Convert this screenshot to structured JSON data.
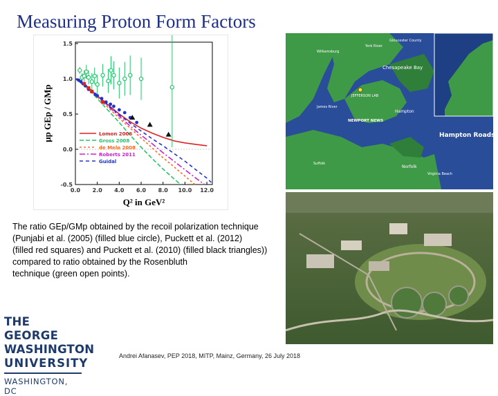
{
  "slide": {
    "title": "Measuring Proton Form Factors",
    "caption_lines": [
      "The ratio GEp/GMp obtained by the recoil polarization technique",
      " (Punjabi et al. (2005) (filled blue circle), Puckett et al. (2012)",
      "(filled red squares) and Puckett et al. (2010) (filled black triangles))",
      "compared to ratio obtained by the Rosenbluth",
      "technique (green open points)."
    ],
    "footer": "Andrei Afanasev, PEP 2018, MITP, Mainz, Germany, 26 July 2018"
  },
  "logo": {
    "line1": "THE GEORGE",
    "line2": "WASHINGTON",
    "line3": "UNIVERSITY",
    "line4": "WASHINGTON, DC"
  },
  "map": {
    "labels": {
      "chesapeake_bay": "Chesapeake Bay",
      "hampton_roads": "Hampton Roads",
      "james_river": "James River",
      "newport_news": "NEWPORT NEWS",
      "jefferson_lab": "JEFFERSON LAB",
      "york_river": "York River",
      "norfolk": "Norfolk",
      "hampton": "Hampton",
      "williamsburg": "Williamsburg",
      "gloucester": "Gloucester County",
      "virginia_beach": "Virginia Beach",
      "suffolk": "Suffolk"
    },
    "colors": {
      "water": "#2a4d9a",
      "land": "#3f9a48",
      "land_dark": "#2f7f3a"
    }
  },
  "chart_data": {
    "type": "scatter",
    "xlabel": "Q² in GeV²",
    "ylabel": "μp GEp / GMp",
    "xlim": [
      0,
      12.5
    ],
    "ylim": [
      -0.5,
      1.52
    ],
    "xticks": [
      0.0,
      2.0,
      4.0,
      6.0,
      8.0,
      10.0,
      12.0
    ],
    "yticks": [
      -0.5,
      0.0,
      0.5,
      1.0,
      1.5
    ],
    "series": [
      {
        "name": "Rosenbluth",
        "marker": "open",
        "color": "#23c46a",
        "points": [
          [
            0.4,
            1.12,
            0.05
          ],
          [
            0.6,
            1.02,
            0.06
          ],
          [
            0.8,
            1.04,
            0.08
          ],
          [
            1.0,
            1.1,
            0.1
          ],
          [
            1.2,
            1.02,
            0.1
          ],
          [
            1.5,
            0.96,
            0.12
          ],
          [
            1.75,
            1.04,
            0.12
          ],
          [
            2.0,
            0.92,
            0.14
          ],
          [
            2.5,
            1.05,
            0.16
          ],
          [
            3.0,
            0.97,
            0.17
          ],
          [
            3.25,
            1.12,
            0.2
          ],
          [
            3.5,
            1.05,
            0.2
          ],
          [
            4.0,
            0.94,
            0.22
          ],
          [
            4.5,
            1.0,
            0.24
          ],
          [
            5.0,
            1.05,
            0.28
          ],
          [
            6.0,
            1.0,
            0.3
          ],
          [
            8.83,
            0.88,
            0.85
          ]
        ]
      },
      {
        "name": "Punjabi et al. (2005)",
        "marker": "circle",
        "color": "#2233cc",
        "points": [
          [
            0.3,
            0.98
          ],
          [
            0.5,
            0.96
          ],
          [
            0.7,
            0.93
          ],
          [
            0.9,
            0.9
          ],
          [
            1.2,
            0.85
          ],
          [
            1.5,
            0.82
          ],
          [
            1.8,
            0.78
          ],
          [
            2.0,
            0.76
          ],
          [
            2.4,
            0.72
          ],
          [
            2.8,
            0.67
          ],
          [
            3.2,
            0.64
          ],
          [
            3.5,
            0.61
          ],
          [
            4.0,
            0.56
          ],
          [
            4.5,
            0.52
          ],
          [
            5.0,
            0.45
          ],
          [
            5.6,
            0.38
          ]
        ]
      },
      {
        "name": "Puckett et al. (2012)",
        "marker": "square",
        "color": "#dd2222",
        "points": [
          [
            0.8,
            0.93
          ],
          [
            1.2,
            0.87
          ],
          [
            1.5,
            0.82
          ],
          [
            2.5,
            0.67
          ]
        ]
      },
      {
        "name": "Puckett et al. (2010)",
        "marker": "triangle",
        "color": "#111111",
        "points": [
          [
            5.2,
            0.45
          ],
          [
            6.8,
            0.35
          ],
          [
            8.5,
            0.21
          ]
        ]
      }
    ],
    "curves": [
      {
        "name": "Lomon 2006",
        "color": "#dd2222",
        "dash": "",
        "points": [
          [
            0,
            1.0
          ],
          [
            1,
            0.9
          ],
          [
            2,
            0.76
          ],
          [
            3,
            0.63
          ],
          [
            4,
            0.5
          ],
          [
            5,
            0.39
          ],
          [
            6,
            0.3
          ],
          [
            7,
            0.23
          ],
          [
            8,
            0.17
          ],
          [
            9,
            0.12
          ],
          [
            10,
            0.09
          ],
          [
            11,
            0.07
          ],
          [
            12,
            0.05
          ]
        ]
      },
      {
        "name": "Gross 2008",
        "color": "#23c46a",
        "dash": "6,3",
        "points": [
          [
            0,
            1.0
          ],
          [
            1,
            0.88
          ],
          [
            2,
            0.72
          ],
          [
            3,
            0.55
          ],
          [
            4,
            0.38
          ],
          [
            5,
            0.2
          ],
          [
            6,
            0.03
          ],
          [
            7,
            -0.13
          ],
          [
            8,
            -0.28
          ],
          [
            9,
            -0.42
          ],
          [
            9.6,
            -0.5
          ]
        ]
      },
      {
        "name": "de Melo 2008",
        "color": "#ff6a1a",
        "dash": "3,3",
        "points": [
          [
            0,
            1.0
          ],
          [
            1,
            0.89
          ],
          [
            2,
            0.74
          ],
          [
            3,
            0.59
          ],
          [
            4,
            0.44
          ],
          [
            5,
            0.3
          ],
          [
            6,
            0.16
          ],
          [
            7,
            0.02
          ],
          [
            8,
            -0.12
          ],
          [
            9,
            -0.25
          ],
          [
            10,
            -0.38
          ],
          [
            10.9,
            -0.5
          ]
        ]
      },
      {
        "name": "Roberts 2011",
        "color": "#cc22cc",
        "dash": "8,3,2,3",
        "points": [
          [
            0,
            1.0
          ],
          [
            1,
            0.9
          ],
          [
            2,
            0.76
          ],
          [
            3,
            0.61
          ],
          [
            4,
            0.47
          ],
          [
            5,
            0.33
          ],
          [
            6,
            0.2
          ],
          [
            7,
            0.08
          ],
          [
            8,
            -0.05
          ],
          [
            9,
            -0.17
          ],
          [
            10,
            -0.29
          ],
          [
            11,
            -0.41
          ],
          [
            11.8,
            -0.5
          ]
        ]
      },
      {
        "name": "Guidal",
        "color": "#2233cc",
        "dash": "5,4",
        "points": [
          [
            0,
            1.0
          ],
          [
            1,
            0.9
          ],
          [
            2,
            0.76
          ],
          [
            3,
            0.62
          ],
          [
            4,
            0.49
          ],
          [
            5,
            0.37
          ],
          [
            6,
            0.26
          ],
          [
            7,
            0.15
          ],
          [
            8,
            0.05
          ],
          [
            9,
            -0.06
          ],
          [
            10,
            -0.17
          ],
          [
            11,
            -0.29
          ],
          [
            12,
            -0.41
          ],
          [
            12.4,
            -0.47
          ]
        ]
      }
    ],
    "legend": [
      "Lomon 2006",
      "Gross 2008",
      "de Melo 2008",
      "Roberts 2011",
      "Guidal"
    ],
    "legend_position": "bottom-left"
  }
}
